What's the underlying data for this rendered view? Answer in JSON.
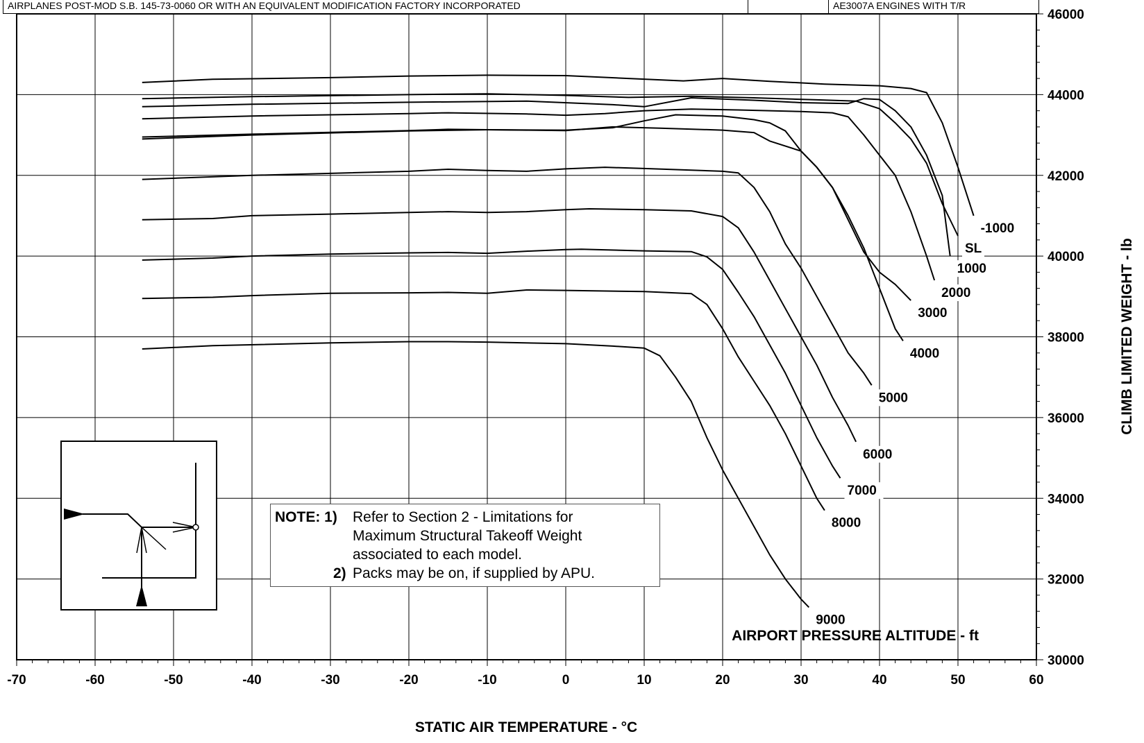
{
  "header": {
    "left_text": "AIRPLANES POST-MOD S.B. 145-73-0060 OR WITH AN EQUIVALENT MODIFICATION FACTORY INCORPORATED",
    "right_text": "AE3007A ENGINES WITH T/R"
  },
  "note": {
    "lead": "NOTE: 1)",
    "item1_lines": [
      "Refer to Section 2 - Limitations for",
      "Maximum Structural Takeoff Weight",
      "associated to each model."
    ],
    "item2_num": "2)",
    "item2_text": "Packs may be on, if supplied by APU."
  },
  "chart_data": {
    "type": "line",
    "xlabel": "STATIC AIR TEMPERATURE - °C",
    "ylabel": "CLIMB LIMITED WEIGHT - lb",
    "series_label": "AIRPORT PRESSURE ALTITUDE - ft",
    "xlim": [
      -70,
      60
    ],
    "ylim": [
      30000,
      46000
    ],
    "x_ticks": [
      -70,
      -60,
      -50,
      -40,
      -30,
      -20,
      -10,
      0,
      10,
      20,
      30,
      40,
      50,
      60
    ],
    "y_ticks": [
      30000,
      32000,
      34000,
      36000,
      38000,
      40000,
      42000,
      44000,
      46000
    ],
    "grid": true,
    "series": [
      {
        "name": "-1000",
        "points": [
          [
            -54,
            44300
          ],
          [
            -45,
            44380
          ],
          [
            -30,
            44420
          ],
          [
            -20,
            44460
          ],
          [
            -10,
            44480
          ],
          [
            0,
            44470
          ],
          [
            8,
            44400
          ],
          [
            15,
            44340
          ],
          [
            20,
            44400
          ],
          [
            26,
            44330
          ],
          [
            33,
            44260
          ],
          [
            40,
            44220
          ],
          [
            44,
            44150
          ],
          [
            46,
            44050
          ],
          [
            48,
            43300
          ],
          [
            50,
            42200
          ],
          [
            52,
            41000
          ]
        ]
      },
      {
        "name": "SL",
        "points": [
          [
            -54,
            43900
          ],
          [
            -40,
            43950
          ],
          [
            -20,
            44000
          ],
          [
            -10,
            44020
          ],
          [
            0,
            43980
          ],
          [
            8,
            43930
          ],
          [
            16,
            43960
          ],
          [
            24,
            43920
          ],
          [
            32,
            43870
          ],
          [
            37,
            43840
          ],
          [
            40,
            43650
          ],
          [
            42,
            43300
          ],
          [
            44,
            42900
          ],
          [
            46,
            42300
          ],
          [
            48,
            41300
          ],
          [
            50,
            40500
          ]
        ]
      },
      {
        "name": "1000",
        "points": [
          [
            -54,
            43700
          ],
          [
            -40,
            43760
          ],
          [
            -20,
            43810
          ],
          [
            -5,
            43840
          ],
          [
            6,
            43750
          ],
          [
            10,
            43700
          ],
          [
            16,
            43920
          ],
          [
            24,
            43860
          ],
          [
            30,
            43800
          ],
          [
            36,
            43780
          ],
          [
            38,
            43900
          ],
          [
            40,
            43880
          ],
          [
            42,
            43600
          ],
          [
            44,
            43200
          ],
          [
            46,
            42500
          ],
          [
            48,
            41500
          ],
          [
            49,
            40000
          ]
        ]
      },
      {
        "name": "2000",
        "points": [
          [
            -54,
            43400
          ],
          [
            -40,
            43470
          ],
          [
            -20,
            43530
          ],
          [
            -15,
            43550
          ],
          [
            -5,
            43520
          ],
          [
            0,
            43490
          ],
          [
            5,
            43530
          ],
          [
            10,
            43600
          ],
          [
            16,
            43640
          ],
          [
            22,
            43620
          ],
          [
            30,
            43580
          ],
          [
            34,
            43550
          ],
          [
            36,
            43450
          ],
          [
            38,
            43000
          ],
          [
            40,
            42500
          ],
          [
            42,
            42000
          ],
          [
            44,
            41100
          ],
          [
            46,
            40000
          ],
          [
            47,
            39400
          ]
        ]
      },
      {
        "name": "3000",
        "points": [
          [
            -54,
            42950
          ],
          [
            -40,
            43020
          ],
          [
            -20,
            43110
          ],
          [
            -15,
            43140
          ],
          [
            -5,
            43120
          ],
          [
            0,
            43110
          ],
          [
            6,
            43200
          ],
          [
            12,
            43170
          ],
          [
            20,
            43120
          ],
          [
            24,
            43060
          ],
          [
            26,
            42850
          ],
          [
            30,
            42600
          ],
          [
            32,
            42200
          ],
          [
            34,
            41700
          ],
          [
            36,
            40900
          ],
          [
            38,
            40100
          ],
          [
            40,
            39600
          ],
          [
            42,
            39300
          ],
          [
            44,
            38900
          ]
        ]
      },
      {
        "name": "4000",
        "points": [
          [
            -54,
            42900
          ],
          [
            -40,
            43000
          ],
          [
            -20,
            43100
          ],
          [
            -10,
            43130
          ],
          [
            0,
            43120
          ],
          [
            6,
            43180
          ],
          [
            10,
            43350
          ],
          [
            14,
            43500
          ],
          [
            20,
            43470
          ],
          [
            24,
            43380
          ],
          [
            26,
            43300
          ],
          [
            28,
            43100
          ],
          [
            30,
            42600
          ],
          [
            32,
            42200
          ],
          [
            34,
            41700
          ],
          [
            36,
            41000
          ],
          [
            38,
            40200
          ],
          [
            40,
            39200
          ],
          [
            42,
            38200
          ],
          [
            43,
            37900
          ]
        ]
      },
      {
        "name": "5000",
        "points": [
          [
            -54,
            41900
          ],
          [
            -40,
            42000
          ],
          [
            -20,
            42100
          ],
          [
            -15,
            42150
          ],
          [
            -10,
            42120
          ],
          [
            -5,
            42100
          ],
          [
            0,
            42160
          ],
          [
            5,
            42200
          ],
          [
            10,
            42170
          ],
          [
            20,
            42100
          ],
          [
            22,
            42060
          ],
          [
            24,
            41700
          ],
          [
            26,
            41100
          ],
          [
            28,
            40300
          ],
          [
            30,
            39700
          ],
          [
            32,
            39000
          ],
          [
            34,
            38300
          ],
          [
            36,
            37600
          ],
          [
            38,
            37100
          ],
          [
            39,
            36800
          ]
        ]
      },
      {
        "name": "6000",
        "points": [
          [
            -54,
            40900
          ],
          [
            -45,
            40930
          ],
          [
            -40,
            41000
          ],
          [
            -30,
            41040
          ],
          [
            -20,
            41080
          ],
          [
            -15,
            41100
          ],
          [
            -10,
            41080
          ],
          [
            -5,
            41100
          ],
          [
            0,
            41150
          ],
          [
            3,
            41170
          ],
          [
            10,
            41150
          ],
          [
            16,
            41120
          ],
          [
            20,
            40980
          ],
          [
            22,
            40700
          ],
          [
            24,
            40100
          ],
          [
            26,
            39400
          ],
          [
            28,
            38700
          ],
          [
            30,
            38000
          ],
          [
            32,
            37300
          ],
          [
            34,
            36500
          ],
          [
            36,
            35800
          ],
          [
            37,
            35400
          ]
        ]
      },
      {
        "name": "7000",
        "points": [
          [
            -54,
            39900
          ],
          [
            -45,
            39950
          ],
          [
            -40,
            40000
          ],
          [
            -30,
            40050
          ],
          [
            -20,
            40080
          ],
          [
            -15,
            40090
          ],
          [
            -10,
            40070
          ],
          [
            -5,
            40120
          ],
          [
            0,
            40160
          ],
          [
            2,
            40170
          ],
          [
            10,
            40130
          ],
          [
            16,
            40110
          ],
          [
            18,
            39980
          ],
          [
            20,
            39670
          ],
          [
            22,
            39100
          ],
          [
            24,
            38500
          ],
          [
            26,
            37800
          ],
          [
            28,
            37100
          ],
          [
            30,
            36300
          ],
          [
            32,
            35500
          ],
          [
            34,
            34800
          ],
          [
            35,
            34500
          ]
        ]
      },
      {
        "name": "8000",
        "points": [
          [
            -54,
            38950
          ],
          [
            -45,
            38980
          ],
          [
            -40,
            39020
          ],
          [
            -30,
            39080
          ],
          [
            -20,
            39090
          ],
          [
            -15,
            39100
          ],
          [
            -10,
            39080
          ],
          [
            -5,
            39160
          ],
          [
            0,
            39150
          ],
          [
            10,
            39120
          ],
          [
            16,
            39070
          ],
          [
            18,
            38800
          ],
          [
            20,
            38200
          ],
          [
            22,
            37500
          ],
          [
            24,
            36900
          ],
          [
            26,
            36300
          ],
          [
            28,
            35600
          ],
          [
            30,
            34800
          ],
          [
            32,
            34000
          ],
          [
            33,
            33700
          ]
        ]
      },
      {
        "name": "9000",
        "points": [
          [
            -54,
            37700
          ],
          [
            -45,
            37780
          ],
          [
            -30,
            37850
          ],
          [
            -20,
            37880
          ],
          [
            -15,
            37880
          ],
          [
            -10,
            37870
          ],
          [
            0,
            37830
          ],
          [
            6,
            37770
          ],
          [
            10,
            37720
          ],
          [
            12,
            37530
          ],
          [
            14,
            37000
          ],
          [
            16,
            36400
          ],
          [
            18,
            35500
          ],
          [
            20,
            34700
          ],
          [
            22,
            34000
          ],
          [
            24,
            33300
          ],
          [
            26,
            32600
          ],
          [
            28,
            32000
          ],
          [
            30,
            31500
          ],
          [
            31,
            31300
          ]
        ]
      }
    ]
  }
}
